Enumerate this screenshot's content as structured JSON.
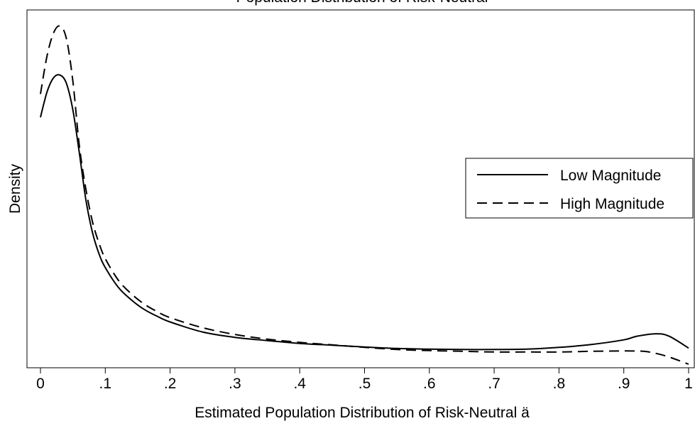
{
  "chart_data": {
    "type": "line",
    "title": "Population Distribution of Risk-Neutral",
    "xlabel": "Estimated Population Distribution of Risk-Neutral ä",
    "ylabel": "Density",
    "xlim": [
      -0.02,
      1.0
    ],
    "ylim": [
      0,
      1.0
    ],
    "grid": false,
    "legend_position": "right",
    "x_ticks": [
      {
        "value": 0,
        "label": "0"
      },
      {
        "value": 0.1,
        "label": ".1"
      },
      {
        "value": 0.2,
        "label": ".2"
      },
      {
        "value": 0.3,
        "label": ".3"
      },
      {
        "value": 0.4,
        "label": ".4"
      },
      {
        "value": 0.5,
        "label": ".5"
      },
      {
        "value": 0.6,
        "label": ".6"
      },
      {
        "value": 0.7,
        "label": ".7"
      },
      {
        "value": 0.8,
        "label": ".8"
      },
      {
        "value": 0.9,
        "label": ".9"
      },
      {
        "value": 1,
        "label": "1"
      }
    ],
    "series": [
      {
        "name": "Low Magnitude",
        "style": "solid",
        "color": "#000000",
        "points": [
          [
            0.0,
            0.7
          ],
          [
            0.01,
            0.77
          ],
          [
            0.02,
            0.81
          ],
          [
            0.03,
            0.818
          ],
          [
            0.04,
            0.795
          ],
          [
            0.05,
            0.72
          ],
          [
            0.06,
            0.6
          ],
          [
            0.07,
            0.47
          ],
          [
            0.08,
            0.38
          ],
          [
            0.09,
            0.32
          ],
          [
            0.1,
            0.28
          ],
          [
            0.12,
            0.225
          ],
          [
            0.14,
            0.19
          ],
          [
            0.16,
            0.163
          ],
          [
            0.18,
            0.144
          ],
          [
            0.2,
            0.128
          ],
          [
            0.25,
            0.1
          ],
          [
            0.3,
            0.085
          ],
          [
            0.35,
            0.076
          ],
          [
            0.4,
            0.068
          ],
          [
            0.45,
            0.063
          ],
          [
            0.5,
            0.058
          ],
          [
            0.55,
            0.054
          ],
          [
            0.6,
            0.052
          ],
          [
            0.65,
            0.051
          ],
          [
            0.7,
            0.051
          ],
          [
            0.75,
            0.052
          ],
          [
            0.8,
            0.057
          ],
          [
            0.85,
            0.065
          ],
          [
            0.9,
            0.078
          ],
          [
            0.92,
            0.088
          ],
          [
            0.95,
            0.095
          ],
          [
            0.97,
            0.088
          ],
          [
            1.0,
            0.055
          ]
        ]
      },
      {
        "name": "High Magnitude",
        "style": "dashed",
        "color": "#000000",
        "points": [
          [
            0.0,
            0.765
          ],
          [
            0.01,
            0.87
          ],
          [
            0.02,
            0.935
          ],
          [
            0.03,
            0.955
          ],
          [
            0.04,
            0.92
          ],
          [
            0.05,
            0.8
          ],
          [
            0.06,
            0.62
          ],
          [
            0.07,
            0.5
          ],
          [
            0.08,
            0.41
          ],
          [
            0.09,
            0.35
          ],
          [
            0.1,
            0.305
          ],
          [
            0.12,
            0.245
          ],
          [
            0.14,
            0.207
          ],
          [
            0.16,
            0.178
          ],
          [
            0.18,
            0.157
          ],
          [
            0.2,
            0.14
          ],
          [
            0.25,
            0.112
          ],
          [
            0.3,
            0.093
          ],
          [
            0.35,
            0.08
          ],
          [
            0.4,
            0.071
          ],
          [
            0.45,
            0.064
          ],
          [
            0.5,
            0.057
          ],
          [
            0.55,
            0.051
          ],
          [
            0.6,
            0.048
          ],
          [
            0.65,
            0.046
          ],
          [
            0.7,
            0.044
          ],
          [
            0.75,
            0.044
          ],
          [
            0.8,
            0.044
          ],
          [
            0.85,
            0.046
          ],
          [
            0.9,
            0.047
          ],
          [
            0.93,
            0.046
          ],
          [
            0.95,
            0.04
          ],
          [
            0.97,
            0.03
          ],
          [
            1.0,
            0.01
          ]
        ]
      }
    ]
  }
}
